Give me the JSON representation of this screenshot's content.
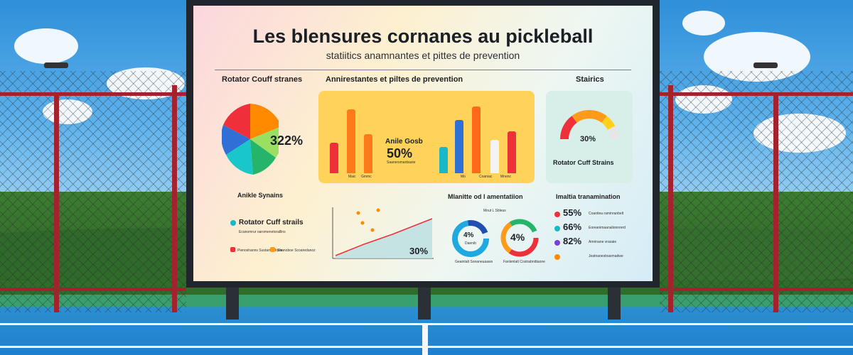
{
  "board": {
    "title": "Les blensures cornanes au pickleball",
    "subtitle": "statiitics anamnantes et pittes de prevention"
  },
  "sections": {
    "left_top": "Rotator Couff stranes",
    "center_top": "Annirestantes et piltes de prevention",
    "right_top": "Stairics",
    "mid_left": "Anikle Synains",
    "mid_center": "Mlanitte od l amentatiion",
    "mid_right": "Imaltia tranamination"
  },
  "pie": {
    "value": "322%",
    "colors": [
      "#ff8a00",
      "#ef2f3a",
      "#2f6fd6",
      "#19c6c9",
      "#25b56a",
      "#9adf62"
    ]
  },
  "barchart": {
    "center_label": "Anile Gosb",
    "center_value": "50%",
    "center_note": "Saanersmanbaste",
    "bars": [
      {
        "value": 0.42,
        "color": "#ef2f3a"
      },
      {
        "value": 0.88,
        "color": "#ff7a1a"
      },
      {
        "value": 0.54,
        "color": "#ff7a1a"
      },
      {
        "value": 0.36,
        "color": "#19b8c8"
      },
      {
        "value": 0.74,
        "color": "#2f6fd6"
      },
      {
        "value": 0.92,
        "color": "#ff6a1a"
      },
      {
        "value": 0.46,
        "color": "#f3f3f3"
      },
      {
        "value": 0.58,
        "color": "#ef2f3a"
      }
    ],
    "tick_labels": [
      "Maic",
      "Gmmc",
      "Mo",
      "Coaniac",
      "Mnenc"
    ]
  },
  "gauge": {
    "value": "30%",
    "caption": "Rotator Cuff Strains"
  },
  "legend_left": {
    "item1": "Rotator Cuff strails",
    "item2": "Ecanomrur oaromenetoralllns",
    "item3": "Pienoshanns Sustarnealtuile",
    "item4": "Soanoboe Scoaredanoz"
  },
  "line": {
    "value": "30%"
  },
  "donuts": {
    "header": "Mout L Sbleus",
    "left_value": "4%",
    "left_sub": "Daenib",
    "right_value": "4%",
    "left_caption": "Geaintalt Sonaneuaaws",
    "right_caption": "Fanlenlatt Costrabndtaone"
  },
  "stats": [
    {
      "value": "55%",
      "note": "Coaotiea raminranbelt",
      "color": "#ef2f3a"
    },
    {
      "value": "66%",
      "note": "Eoreanimaanalionnrerd",
      "color": "#19b8c8"
    },
    {
      "value": "82%",
      "note": "Amrinane vraoaie",
      "color": "#7a3fd6"
    },
    {
      "value": "",
      "note": "Jeatnaoestoaxmadwe",
      "color": "#ff8a00"
    }
  ]
}
